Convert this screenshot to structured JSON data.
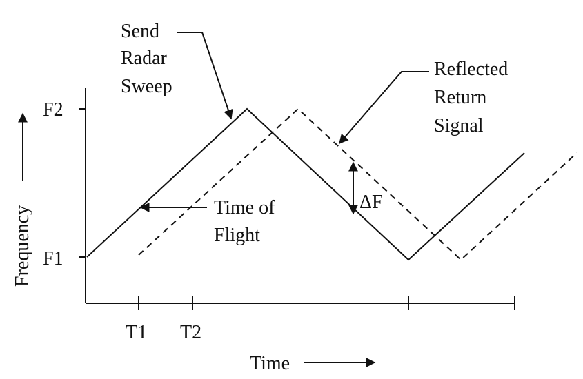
{
  "labels": {
    "y_top": "F2",
    "y_bottom": "F1",
    "x_t1": "T1",
    "x_t2": "T2",
    "x_axis": "Time",
    "y_axis": "Frequency",
    "send_line1": "Send",
    "send_line2": "Radar",
    "send_line3": "Sweep",
    "reflected_line1": "Reflected",
    "reflected_line2": "Return",
    "reflected_line3": "Signal",
    "tof_line1": "Time of",
    "tof_line2": "Flight",
    "delta_f": "ΔF"
  },
  "colors": {
    "line": "#111111",
    "background": "#ffffff"
  }
}
